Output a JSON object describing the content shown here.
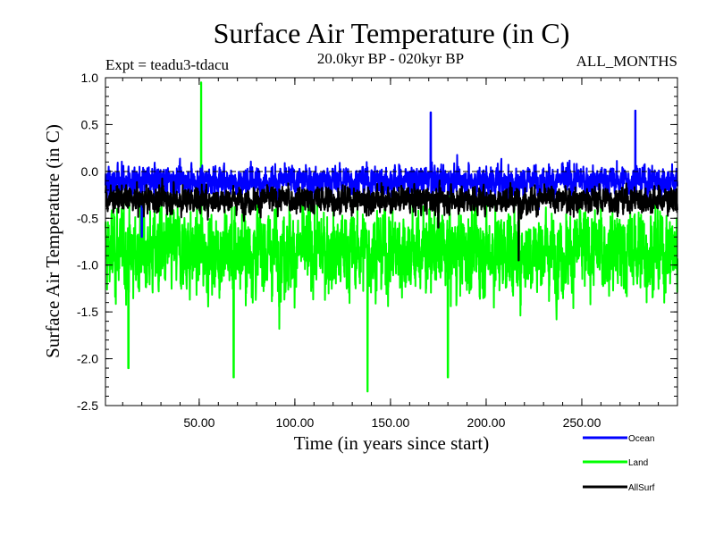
{
  "chart_data": {
    "type": "line",
    "title": "Surface Air Temperature (in C)",
    "subtitle": "20.0kyr BP - 020kyr BP",
    "experiment_label": "Expt = teadu3-tdacu",
    "months_label": "ALL_MONTHS",
    "xlabel": "Time (in years since start)",
    "ylabel": "Surface Air Temperature (in C)",
    "xlim": [
      1,
      300
    ],
    "ylim": [
      -2.5,
      1.0
    ],
    "x_ticks": [
      50,
      100,
      150,
      200,
      250
    ],
    "x_tick_labels": [
      "50.00",
      "100.00",
      "150.00",
      "200.00",
      "250.00"
    ],
    "y_ticks": [
      -2.5,
      -2.0,
      -1.5,
      -1.0,
      -0.5,
      0.0,
      0.5,
      1.0
    ],
    "y_tick_labels": [
      "-2.5",
      "-2.0",
      "-1.5",
      "-1.0",
      "-0.5",
      "0.0",
      "0.5",
      "1.0"
    ],
    "reference_line": 0.0,
    "legend_position": "bottom-right",
    "series": [
      {
        "name": "Land",
        "color": "#00ff00",
        "mean": -0.85,
        "spread": 0.95,
        "extremes": [
          [
            51,
            0.95
          ],
          [
            138,
            -2.35
          ],
          [
            68,
            -2.2
          ],
          [
            13,
            -2.1
          ],
          [
            180,
            -2.2
          ]
        ]
      },
      {
        "name": "Ocean",
        "color": "#0000ff",
        "mean": -0.1,
        "spread": 0.35,
        "extremes": [
          [
            171,
            0.63
          ],
          [
            278,
            0.65
          ],
          [
            20,
            -0.7
          ]
        ]
      },
      {
        "name": "AllSurf",
        "color": "#000000",
        "mean": -0.3,
        "spread": 0.3,
        "extremes": [
          [
            217,
            -0.95
          ],
          [
            175,
            -0.6
          ]
        ]
      }
    ],
    "legend": [
      {
        "name": "Ocean",
        "color": "#0000ff"
      },
      {
        "name": "Land",
        "color": "#00ff00"
      },
      {
        "name": "AllSurf",
        "color": "#000000"
      }
    ]
  }
}
